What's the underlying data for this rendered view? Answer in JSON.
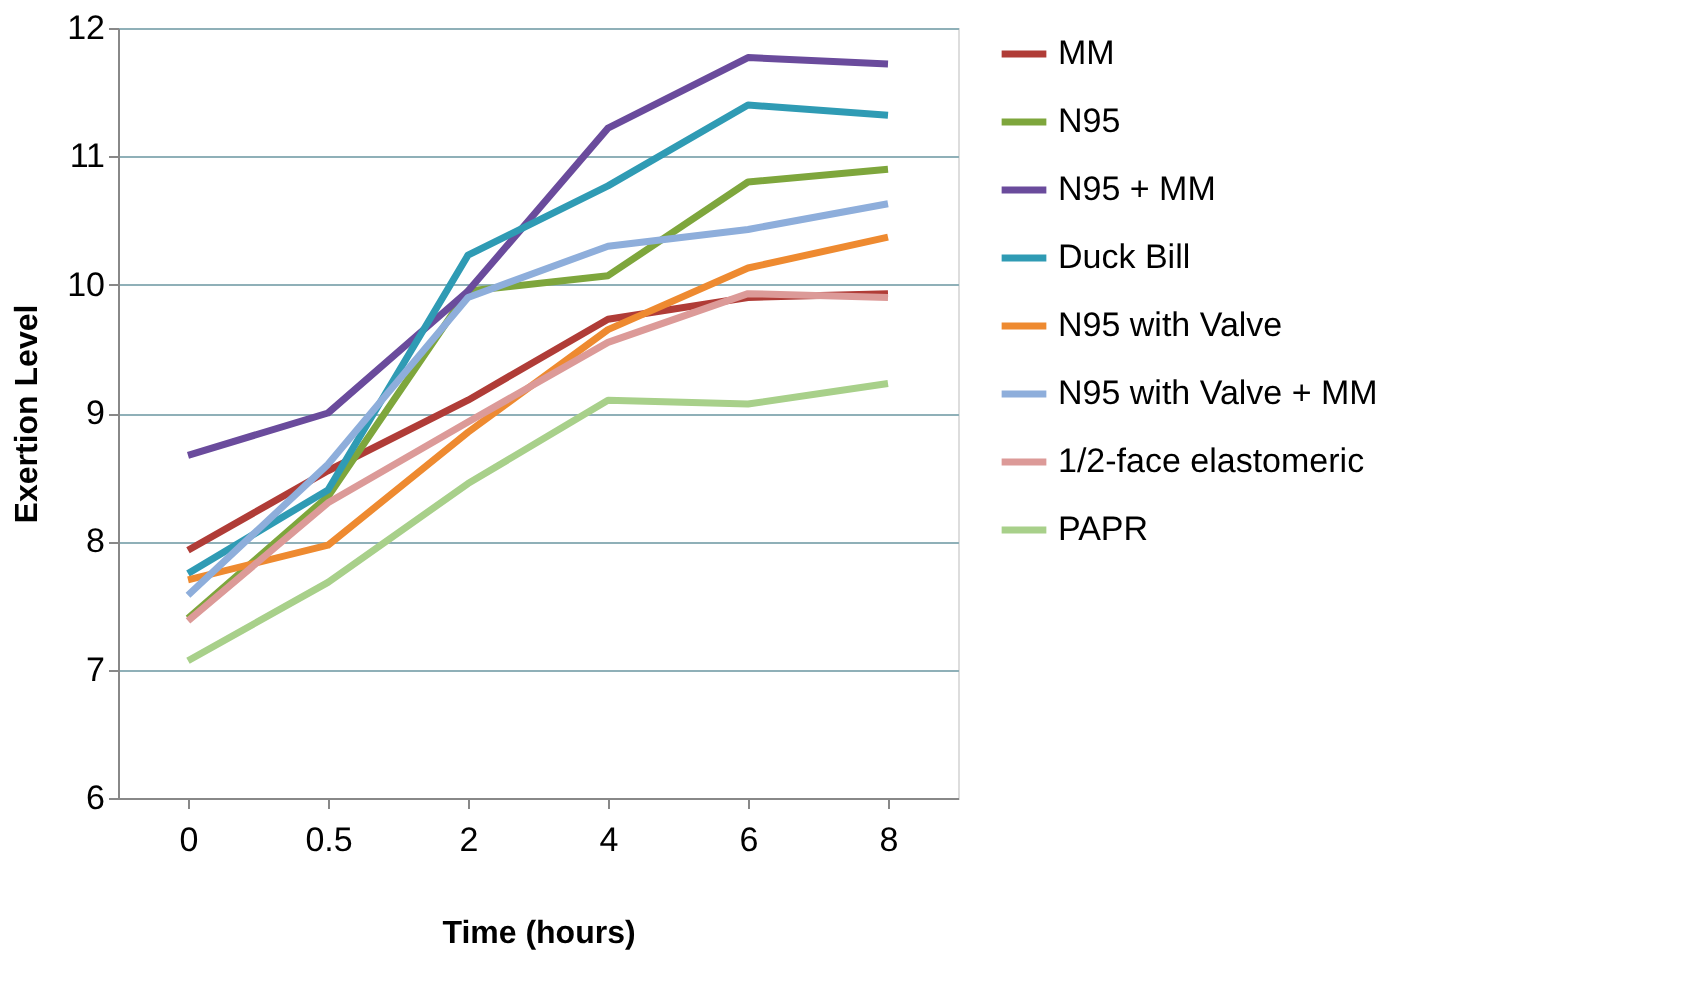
{
  "chart_data": {
    "type": "line",
    "xlabel": "Time (hours)",
    "ylabel": "Exertion Level",
    "categories": [
      "0",
      "0.5",
      "2",
      "4",
      "6",
      "8"
    ],
    "ylim": [
      6,
      12
    ],
    "yticks": [
      6,
      7,
      8,
      9,
      10,
      11,
      12
    ],
    "grid": "y",
    "legend": "right",
    "marker": "none",
    "line_style": "solid",
    "series": [
      {
        "name": "MM",
        "color": "#b03c37",
        "values": [
          7.93,
          8.55,
          9.1,
          9.73,
          9.9,
          9.93
        ]
      },
      {
        "name": "N95",
        "color": "#7ea63c",
        "values": [
          7.4,
          8.35,
          9.95,
          10.07,
          10.8,
          10.9
        ]
      },
      {
        "name": "N95 + MM",
        "color": "#6a4b9c",
        "values": [
          8.67,
          9.0,
          9.95,
          11.22,
          11.77,
          11.72
        ]
      },
      {
        "name": "Duck Bill",
        "color": "#2f9bb4",
        "values": [
          7.75,
          8.4,
          10.23,
          10.77,
          11.4,
          11.32
        ]
      },
      {
        "name": "N95 with Valve",
        "color": "#ee8a30",
        "values": [
          7.7,
          7.97,
          8.85,
          9.65,
          10.13,
          10.37
        ]
      },
      {
        "name": "N95 with Valve + MM",
        "color": "#8eaedb",
        "values": [
          7.58,
          8.6,
          9.9,
          10.3,
          10.43,
          10.63
        ]
      },
      {
        "name": "1/2-face elastomeric",
        "color": "#dc9a98",
        "values": [
          7.38,
          8.3,
          8.93,
          9.55,
          9.93,
          9.9
        ]
      },
      {
        "name": "PAPR",
        "color": "#a8d08a",
        "values": [
          7.07,
          7.68,
          8.45,
          9.1,
          9.07,
          9.23
        ]
      }
    ]
  }
}
